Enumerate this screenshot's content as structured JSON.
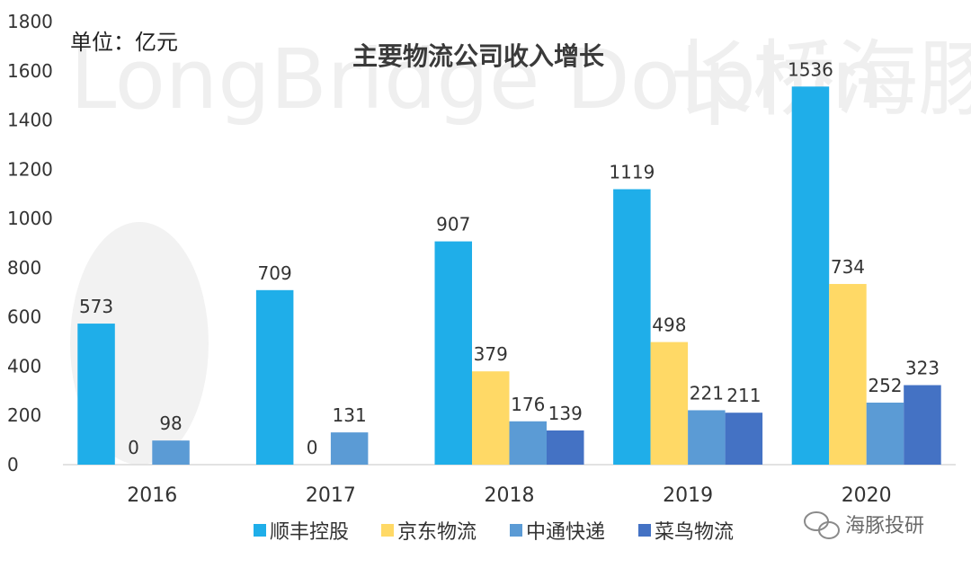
{
  "chart_data": {
    "type": "bar",
    "title": "主要物流公司收入增长",
    "unit_label": "单位：亿元",
    "categories": [
      "2016",
      "2017",
      "2018",
      "2019",
      "2020"
    ],
    "ylim": [
      0,
      1800
    ],
    "yticks": [
      0,
      200,
      400,
      600,
      800,
      1000,
      1200,
      1400,
      1600,
      1800
    ],
    "series": [
      {
        "name": "顺丰控股",
        "color": "#1faee9",
        "values": [
          573,
          709,
          907,
          1119,
          1536
        ]
      },
      {
        "name": "京东物流",
        "color": "#ffd966",
        "values": [
          0,
          0,
          379,
          498,
          734
        ]
      },
      {
        "name": "中通快递",
        "color": "#5b9bd5",
        "values": [
          98,
          131,
          176,
          221,
          252
        ]
      },
      {
        "name": "菜鸟物流",
        "color": "#4472c4",
        "values": [
          null,
          null,
          139,
          211,
          323
        ]
      }
    ],
    "legend_position": "bottom",
    "grid": false
  },
  "watermark": {
    "english": "LongBridge Dolphin",
    "chinese": "长桥海豚投研"
  },
  "credit": {
    "text": "海豚投研",
    "icon": "wechat-icon"
  }
}
